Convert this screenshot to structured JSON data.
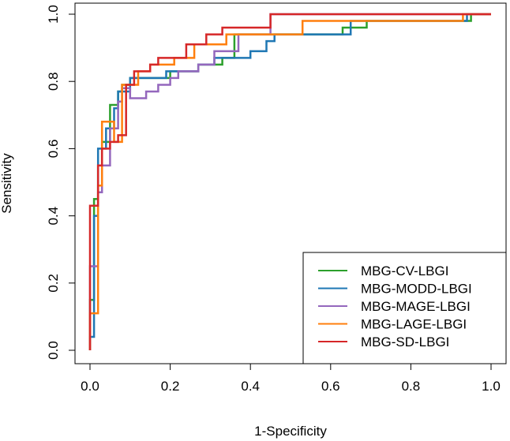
{
  "chart_data": {
    "type": "line",
    "title": "",
    "xlabel": "1-Specificity",
    "ylabel": "Sensitivity",
    "xlim": [
      0,
      1
    ],
    "ylim": [
      0,
      1
    ],
    "xticks": [
      "0.0",
      "0.2",
      "0.4",
      "0.6",
      "0.8",
      "1.0"
    ],
    "yticks": [
      "0.0",
      "0.2",
      "0.4",
      "0.6",
      "0.8",
      "1.0"
    ],
    "legend_position": "bottom-right",
    "series": [
      {
        "name": "MBG-CV-LBGI",
        "color": "#2ca02c",
        "x": [
          0,
          0,
          0.01,
          0.01,
          0.02,
          0.02,
          0.03,
          0.03,
          0.05,
          0.05,
          0.07,
          0.07,
          0.08,
          0.08,
          0.1,
          0.1,
          0.13,
          0.13,
          0.2,
          0.2,
          0.27,
          0.27,
          0.33,
          0.33,
          0.36,
          0.36,
          0.47,
          0.47,
          0.63,
          0.63,
          0.69,
          0.69,
          0.95,
          0.95,
          1
        ],
        "y": [
          0,
          0.15,
          0.15,
          0.45,
          0.45,
          0.55,
          0.55,
          0.62,
          0.62,
          0.73,
          0.73,
          0.77,
          0.77,
          0.79,
          0.79,
          0.81,
          0.81,
          0.81,
          0.81,
          0.83,
          0.83,
          0.85,
          0.85,
          0.87,
          0.87,
          0.94,
          0.94,
          0.94,
          0.94,
          0.96,
          0.96,
          0.98,
          0.98,
          1,
          1
        ]
      },
      {
        "name": "MBG-MODD-LBGI",
        "color": "#1f77b4",
        "x": [
          0,
          0,
          0.01,
          0.01,
          0.02,
          0.02,
          0.04,
          0.04,
          0.06,
          0.06,
          0.07,
          0.07,
          0.1,
          0.1,
          0.19,
          0.19,
          0.27,
          0.27,
          0.31,
          0.31,
          0.4,
          0.4,
          0.44,
          0.44,
          0.46,
          0.46,
          0.65,
          0.65,
          0.94,
          0.94,
          1
        ],
        "y": [
          0,
          0.04,
          0.04,
          0.4,
          0.4,
          0.6,
          0.6,
          0.66,
          0.66,
          0.72,
          0.72,
          0.77,
          0.77,
          0.81,
          0.81,
          0.83,
          0.83,
          0.85,
          0.85,
          0.87,
          0.87,
          0.89,
          0.89,
          0.92,
          0.92,
          0.94,
          0.94,
          0.98,
          0.98,
          1,
          1
        ]
      },
      {
        "name": "MBG-MAGE-LBGI",
        "color": "#9467bd",
        "x": [
          0,
          0,
          0.02,
          0.02,
          0.03,
          0.03,
          0.05,
          0.05,
          0.07,
          0.07,
          0.08,
          0.08,
          0.1,
          0.1,
          0.14,
          0.14,
          0.17,
          0.17,
          0.2,
          0.2,
          0.22,
          0.22,
          0.27,
          0.27,
          0.31,
          0.31,
          0.37,
          0.37,
          0.45,
          0.45,
          1
        ],
        "y": [
          0,
          0.25,
          0.25,
          0.47,
          0.47,
          0.55,
          0.55,
          0.66,
          0.66,
          0.74,
          0.74,
          0.78,
          0.78,
          0.75,
          0.75,
          0.77,
          0.77,
          0.79,
          0.79,
          0.81,
          0.81,
          0.83,
          0.83,
          0.85,
          0.85,
          0.89,
          0.89,
          0.94,
          0.94,
          1,
          1
        ]
      },
      {
        "name": "MBG-LAGE-LBGI",
        "color": "#ff7f0e",
        "x": [
          0,
          0,
          0.02,
          0.02,
          0.03,
          0.03,
          0.06,
          0.06,
          0.08,
          0.08,
          0.12,
          0.12,
          0.15,
          0.15,
          0.21,
          0.21,
          0.26,
          0.26,
          0.34,
          0.34,
          0.53,
          0.53,
          0.93,
          0.93,
          1
        ],
        "y": [
          0,
          0.11,
          0.11,
          0.49,
          0.49,
          0.68,
          0.68,
          0.62,
          0.62,
          0.79,
          0.79,
          0.83,
          0.83,
          0.85,
          0.85,
          0.87,
          0.87,
          0.91,
          0.91,
          0.94,
          0.94,
          0.98,
          0.98,
          1,
          1
        ]
      },
      {
        "name": "MBG-SD-LBGI",
        "color": "#d62728",
        "x": [
          0,
          0,
          0.02,
          0.02,
          0.03,
          0.03,
          0.05,
          0.05,
          0.07,
          0.07,
          0.09,
          0.09,
          0.11,
          0.11,
          0.15,
          0.15,
          0.17,
          0.17,
          0.24,
          0.24,
          0.29,
          0.29,
          0.33,
          0.33,
          0.45,
          0.45,
          1
        ],
        "y": [
          0,
          0.43,
          0.43,
          0.55,
          0.55,
          0.6,
          0.6,
          0.62,
          0.62,
          0.64,
          0.64,
          0.79,
          0.79,
          0.83,
          0.83,
          0.85,
          0.85,
          0.87,
          0.87,
          0.91,
          0.91,
          0.94,
          0.94,
          0.96,
          0.96,
          1,
          1
        ]
      }
    ]
  }
}
